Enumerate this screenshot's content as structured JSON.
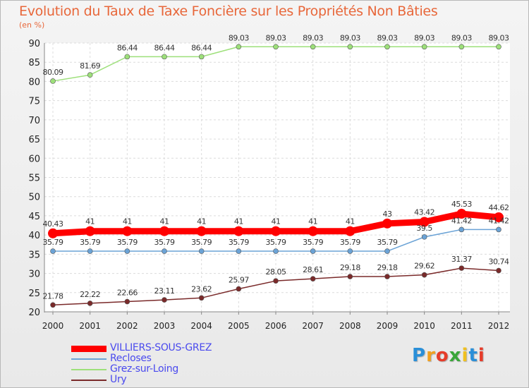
{
  "title": "Evolution du Taux de Taxe Foncière sur les Propriétés Non Bâties",
  "unit_label": "(en %)",
  "logo": {
    "text": "Proxiti",
    "colors": [
      "#2a8fd8",
      "#f0a020",
      "#e63c2a",
      "#3aa63a",
      "#f0c020",
      "#2a8fd8",
      "#e63c2a"
    ]
  },
  "chart_data": {
    "type": "line",
    "title": "Evolution du Taux de Taxe Foncière sur les Propriétés Non Bâties",
    "ylabel": "(en %)",
    "xlabel": "",
    "ylim": [
      20,
      90
    ],
    "yticks": [
      20,
      25,
      30,
      35,
      40,
      45,
      50,
      55,
      60,
      65,
      70,
      75,
      80,
      85,
      90
    ],
    "x": [
      "2000",
      "2001",
      "2002",
      "2003",
      "2004",
      "2005",
      "2006",
      "2007",
      "2008",
      "2009",
      "2010",
      "2011",
      "2012"
    ],
    "grid": true,
    "legend": "bottom-left",
    "series": [
      {
        "name": "VILLIERS-SOUS-GREZ",
        "color": "#ff0000",
        "values": [
          40.43,
          41,
          41,
          41,
          41,
          41,
          41,
          41,
          41,
          43,
          43.42,
          45.53,
          44.62
        ],
        "labels": [
          "40.43",
          "41",
          "41",
          "41",
          "41",
          "41",
          "41",
          "41",
          "41",
          "43",
          "43.42",
          "45.53",
          "44.62"
        ]
      },
      {
        "name": "Recloses",
        "color": "#6ba3d6",
        "values": [
          35.79,
          35.79,
          35.79,
          35.79,
          35.79,
          35.79,
          35.79,
          35.79,
          35.79,
          35.79,
          39.5,
          41.42,
          41.42
        ],
        "labels": [
          "35.79",
          "35.79",
          "35.79",
          "35.79",
          "35.79",
          "35.79",
          "35.79",
          "35.79",
          "35.79",
          "35.79",
          "39.5",
          "41.42",
          "41.42"
        ]
      },
      {
        "name": "Grez-sur-Loing",
        "color": "#9de07a",
        "values": [
          80.09,
          81.69,
          86.44,
          86.44,
          86.44,
          89.03,
          89.03,
          89.03,
          89.03,
          89.03,
          89.03,
          89.03,
          89.03
        ],
        "labels": [
          "80.09",
          "81.69",
          "86.44",
          "86.44",
          "86.44",
          "89.03",
          "89.03",
          "89.03",
          "89.03",
          "89.03",
          "89.03",
          "89.03",
          "89.03"
        ]
      },
      {
        "name": "Ury",
        "color": "#7a2a2a",
        "values": [
          21.78,
          22.22,
          22.66,
          23.11,
          23.62,
          25.97,
          28.05,
          28.61,
          29.18,
          29.18,
          29.62,
          31.37,
          30.74
        ],
        "labels": [
          "21.78",
          "22.22",
          "22.66",
          "23.11",
          "23.62",
          "25.97",
          "28.05",
          "28.61",
          "29.18",
          "29.18",
          "29.62",
          "31.37",
          "30.74"
        ]
      }
    ]
  }
}
